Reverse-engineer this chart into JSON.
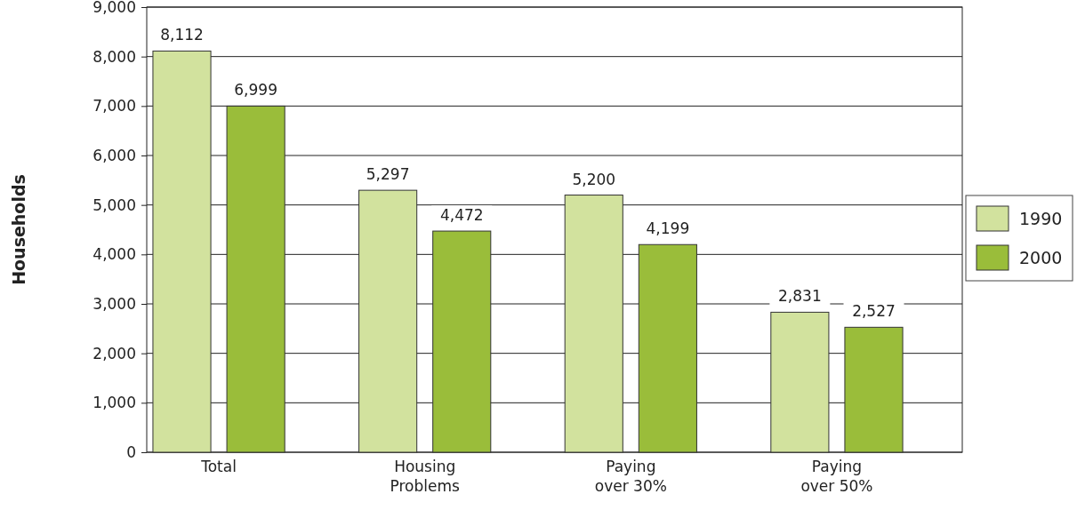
{
  "chart_data": {
    "type": "bar",
    "ylabel": "Households",
    "categories": [
      "Total",
      "Housing Problems",
      "Paying over 30%",
      "Paying over 50%"
    ],
    "series": [
      {
        "name": "1990",
        "color": "#d2e29e",
        "values": [
          8112,
          5297,
          5200,
          2831
        ],
        "value_labels": [
          "8,112",
          "5,297",
          "5,200",
          "2,831"
        ]
      },
      {
        "name": "2000",
        "color": "#9abd3a",
        "values": [
          6999,
          4472,
          4199,
          2527
        ],
        "value_labels": [
          "6,999",
          "4,472",
          "4,199",
          "2,527"
        ]
      }
    ],
    "ylim": [
      0,
      9000
    ],
    "yticks": [
      {
        "value": 0,
        "label": "0"
      },
      {
        "value": 1000,
        "label": "1,000"
      },
      {
        "value": 2000,
        "label": "2,000"
      },
      {
        "value": 3000,
        "label": "3,000"
      },
      {
        "value": 4000,
        "label": "4,000"
      },
      {
        "value": 5000,
        "label": "5,000"
      },
      {
        "value": 6000,
        "label": "6,000"
      },
      {
        "value": 7000,
        "label": "7,000"
      },
      {
        "value": 8000,
        "label": "8,000"
      },
      {
        "value": 9000,
        "label": "9,000"
      }
    ],
    "grid": "y",
    "legend": "right"
  }
}
